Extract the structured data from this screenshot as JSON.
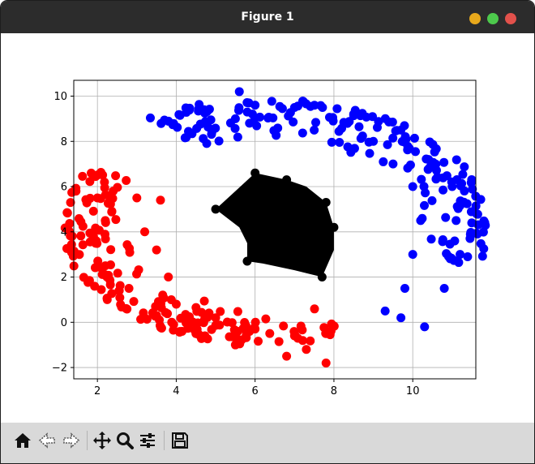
{
  "window": {
    "title": "Figure 1"
  },
  "toolbar": {
    "icons": [
      "home-icon",
      "back-icon",
      "forward-icon",
      "pan-icon",
      "zoom-icon",
      "configure-subplots-icon",
      "save-icon"
    ]
  },
  "chart_data": {
    "type": "scatter",
    "title": "",
    "xlabel": "",
    "ylabel": "",
    "xlim": [
      1.4,
      11.6
    ],
    "ylim": [
      -2.5,
      10.7
    ],
    "xticks": [
      "2",
      "4",
      "6",
      "8",
      "10"
    ],
    "yticks": [
      "−2",
      "0",
      "2",
      "4",
      "6",
      "8",
      "10"
    ],
    "grid": true,
    "series": [
      {
        "color": "#ff0000",
        "shape": "arc",
        "center": [
          6.3,
          4.2
        ],
        "r_inner": 3.5,
        "r_outer": 5.2,
        "angle_start_deg": 148,
        "angle_end_deg": 292,
        "points": [
          [
            2.0,
            5.5
          ],
          [
            2.4,
            5.8
          ],
          [
            3.0,
            5.5
          ],
          [
            3.6,
            5.4
          ],
          [
            2.2,
            4.5
          ],
          [
            3.2,
            4.0
          ],
          [
            1.9,
            3.8
          ],
          [
            3.5,
            3.2
          ],
          [
            2.2,
            2.5
          ],
          [
            3.8,
            2.0
          ],
          [
            2.8,
            1.5
          ],
          [
            4.0,
            0.8
          ],
          [
            3.5,
            0.3
          ],
          [
            5.0,
            0.2
          ],
          [
            4.5,
            -0.5
          ],
          [
            6.0,
            -0.3
          ],
          [
            5.5,
            -1.0
          ],
          [
            7.0,
            -0.6
          ],
          [
            6.8,
            -1.5
          ],
          [
            7.8,
            -0.5
          ],
          [
            7.8,
            -1.8
          ],
          [
            7.3,
            -1.2
          ]
        ]
      },
      {
        "color": "#0000ff",
        "shape": "arc",
        "center": [
          6.3,
          4.2
        ],
        "r_inner": 3.8,
        "r_outer": 5.7,
        "angle_start_deg": -18,
        "angle_end_deg": 123,
        "points": [
          [
            5.6,
            10.2
          ],
          [
            6.0,
            9.6
          ],
          [
            5.5,
            9.0
          ],
          [
            7.0,
            9.5
          ],
          [
            7.5,
            8.5
          ],
          [
            8.5,
            9.2
          ],
          [
            9.0,
            8.0
          ],
          [
            9.7,
            8.5
          ],
          [
            9.5,
            7.0
          ],
          [
            10.4,
            7.2
          ],
          [
            10.0,
            6.0
          ],
          [
            11.0,
            6.0
          ],
          [
            10.2,
            4.5
          ],
          [
            11.1,
            4.5
          ],
          [
            10.0,
            3.0
          ],
          [
            11.2,
            3.0
          ],
          [
            9.8,
            1.5
          ],
          [
            10.8,
            1.5
          ],
          [
            9.3,
            0.5
          ],
          [
            10.3,
            -0.2
          ],
          [
            9.7,
            0.2
          ]
        ]
      },
      {
        "color": "#000000",
        "shape": "polygon",
        "vertices": [
          [
            6.0,
            6.6
          ],
          [
            6.8,
            6.3
          ],
          [
            7.3,
            6.0
          ],
          [
            7.8,
            5.3
          ],
          [
            8.0,
            4.2
          ],
          [
            8.0,
            3.2
          ],
          [
            7.7,
            2.0
          ],
          [
            7.0,
            2.3
          ],
          [
            6.2,
            2.6
          ],
          [
            5.8,
            2.7
          ],
          [
            5.8,
            3.5
          ],
          [
            5.6,
            4.2
          ],
          [
            5.0,
            5.0
          ],
          [
            5.5,
            5.8
          ]
        ],
        "points": [
          [
            6.0,
            6.6
          ],
          [
            6.8,
            6.3
          ],
          [
            7.8,
            5.3
          ],
          [
            8.0,
            4.2
          ],
          [
            7.7,
            2.0
          ],
          [
            5.8,
            2.7
          ],
          [
            5.0,
            5.0
          ],
          [
            6.5,
            4.5
          ],
          [
            7.0,
            3.5
          ],
          [
            6.2,
            5.5
          ]
        ]
      }
    ]
  }
}
